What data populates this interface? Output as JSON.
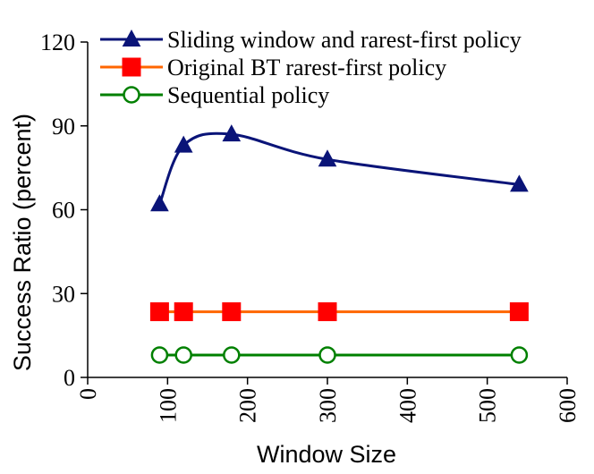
{
  "chart_data": {
    "type": "line",
    "xlabel": "Window Size",
    "ylabel": "Success Ratio (percent)",
    "xlim": [
      0,
      600
    ],
    "ylim": [
      0,
      120
    ],
    "xticks": [
      0,
      100,
      200,
      300,
      400,
      500,
      600
    ],
    "yticks": [
      0,
      30,
      60,
      90,
      120
    ],
    "xtick_labels": [
      "0",
      "100",
      "200",
      "300",
      "400",
      "500",
      "600"
    ],
    "ytick_labels": [
      "0",
      "30",
      "60",
      "90",
      "120"
    ],
    "grid": false,
    "legend_position": "top",
    "series": [
      {
        "name": "Sliding window and rarest-first policy",
        "marker": "triangle",
        "color": "#0a1478",
        "smooth": true,
        "x": [
          90,
          120,
          180,
          300,
          540
        ],
        "y": [
          62,
          83,
          87,
          78,
          69
        ]
      },
      {
        "name": "Original BT rarest-first policy",
        "marker": "square",
        "color": "#ff6600",
        "marker_color": "#ff0000",
        "smooth": false,
        "x": [
          90,
          120,
          180,
          300,
          540
        ],
        "y": [
          23.5,
          23.5,
          23.5,
          23.5,
          23.5
        ]
      },
      {
        "name": "Sequential policy",
        "marker": "circle",
        "color": "#008000",
        "smooth": false,
        "x": [
          90,
          120,
          180,
          300,
          540
        ],
        "y": [
          8,
          8,
          8,
          8,
          8
        ]
      }
    ]
  }
}
